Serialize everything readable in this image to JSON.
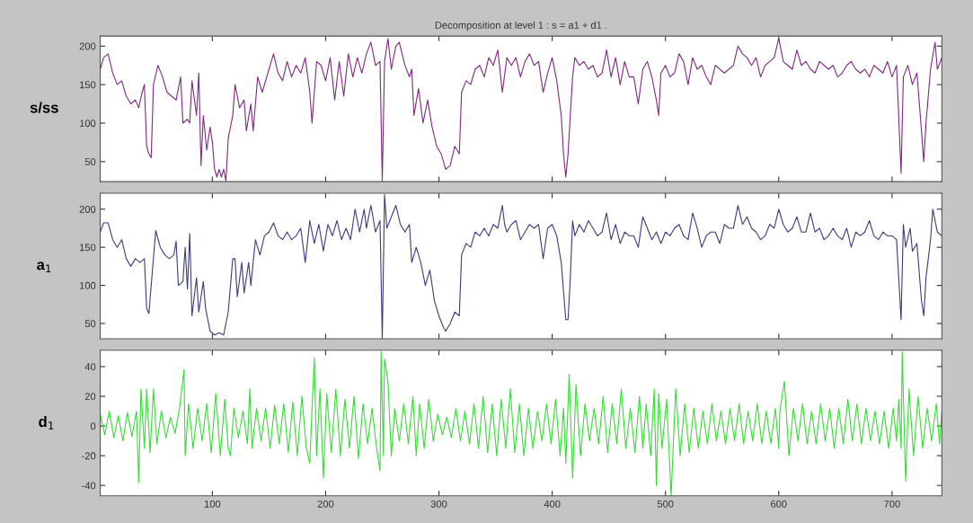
{
  "chart_data": [
    {
      "type": "line",
      "title": "Decomposition at level 1 : s = a1 + d1 .",
      "ylabel": "s/ss",
      "xlim": [
        1,
        744
      ],
      "ylim": [
        24,
        213
      ],
      "xticks": [
        100,
        200,
        300,
        400,
        500,
        600,
        700
      ],
      "yticks": [
        50,
        100,
        150,
        200
      ],
      "tick_labels": "y",
      "grid": false,
      "x": [
        1,
        4,
        8,
        12,
        16,
        20,
        24,
        28,
        32,
        35,
        38,
        40,
        42,
        44,
        46,
        48,
        52,
        56,
        60,
        64,
        68,
        72,
        74,
        78,
        80,
        82,
        86,
        88,
        90,
        92,
        95,
        98,
        100,
        102,
        104,
        106,
        108,
        110,
        112,
        114,
        118,
        120,
        124,
        128,
        130,
        134,
        136,
        140,
        144,
        148,
        150,
        154,
        158,
        162,
        166,
        170,
        174,
        178,
        182,
        186,
        188,
        192,
        196,
        200,
        204,
        208,
        212,
        216,
        220,
        224,
        228,
        232,
        236,
        240,
        244,
        248,
        250,
        252,
        255,
        258,
        262,
        265,
        270,
        274,
        276,
        278,
        282,
        286,
        290,
        294,
        298,
        302,
        306,
        310,
        314,
        318,
        320,
        324,
        328,
        332,
        336,
        340,
        344,
        348,
        352,
        356,
        360,
        364,
        368,
        372,
        376,
        380,
        384,
        388,
        392,
        396,
        400,
        404,
        408,
        410,
        412,
        414,
        416,
        418,
        420,
        424,
        428,
        432,
        436,
        440,
        444,
        448,
        452,
        456,
        460,
        464,
        468,
        472,
        476,
        480,
        484,
        488,
        492,
        494,
        496,
        500,
        504,
        508,
        512,
        516,
        520,
        524,
        528,
        532,
        536,
        540,
        544,
        548,
        552,
        556,
        560,
        564,
        568,
        572,
        576,
        580,
        584,
        588,
        592,
        596,
        600,
        604,
        608,
        612,
        616,
        620,
        624,
        628,
        632,
        636,
        640,
        644,
        648,
        652,
        656,
        660,
        664,
        668,
        672,
        676,
        680,
        684,
        688,
        692,
        696,
        700,
        704,
        708,
        710,
        714,
        718,
        722,
        726,
        728,
        730,
        734,
        738,
        740,
        744
      ],
      "series": [
        {
          "color": "#7e2a80",
          "values": [
            170,
            185,
            190,
            165,
            150,
            155,
            135,
            125,
            130,
            120,
            140,
            150,
            70,
            60,
            55,
            150,
            175,
            160,
            140,
            135,
            130,
            160,
            100,
            105,
            100,
            155,
            110,
            165,
            45,
            110,
            65,
            95,
            75,
            40,
            30,
            40,
            30,
            40,
            25,
            80,
            110,
            150,
            120,
            130,
            90,
            125,
            90,
            160,
            140,
            160,
            170,
            190,
            165,
            155,
            180,
            160,
            175,
            165,
            185,
            140,
            100,
            180,
            175,
            155,
            185,
            130,
            180,
            135,
            190,
            160,
            185,
            165,
            190,
            205,
            175,
            180,
            25,
            180,
            210,
            170,
            200,
            205,
            175,
            160,
            170,
            110,
            145,
            100,
            130,
            95,
            70,
            60,
            40,
            45,
            70,
            60,
            140,
            155,
            150,
            170,
            175,
            160,
            185,
            175,
            195,
            140,
            185,
            175,
            185,
            160,
            180,
            190,
            175,
            180,
            140,
            165,
            185,
            155,
            110,
            60,
            30,
            60,
            110,
            160,
            185,
            175,
            180,
            170,
            175,
            160,
            165,
            195,
            160,
            185,
            150,
            180,
            160,
            160,
            125,
            170,
            180,
            160,
            130,
            110,
            165,
            175,
            160,
            165,
            190,
            180,
            150,
            185,
            170,
            175,
            160,
            150,
            175,
            170,
            165,
            170,
            175,
            200,
            190,
            185,
            175,
            185,
            160,
            175,
            180,
            185,
            210,
            180,
            175,
            170,
            195,
            175,
            180,
            170,
            165,
            180,
            175,
            170,
            175,
            160,
            165,
            175,
            180,
            170,
            165,
            170,
            160,
            175,
            170,
            165,
            180,
            160,
            175,
            35,
            160,
            175,
            150,
            165,
            90,
            50,
            100,
            170,
            205,
            170,
            185
          ]
        }
      ]
    },
    {
      "type": "line",
      "ylabel": "a$_{1}$",
      "xlim": [
        1,
        744
      ],
      "ylim": [
        30,
        221
      ],
      "xticks": [
        100,
        200,
        300,
        400,
        500,
        600,
        700
      ],
      "yticks": [
        50,
        100,
        150,
        200
      ],
      "tick_labels": "y",
      "grid": false,
      "x": [
        1,
        4,
        8,
        12,
        16,
        20,
        24,
        28,
        32,
        36,
        40,
        42,
        44,
        46,
        50,
        54,
        58,
        62,
        66,
        68,
        70,
        74,
        76,
        78,
        80,
        82,
        86,
        88,
        92,
        94,
        98,
        102,
        106,
        110,
        114,
        118,
        120,
        122,
        126,
        128,
        132,
        134,
        138,
        142,
        146,
        150,
        154,
        158,
        162,
        166,
        170,
        174,
        178,
        182,
        186,
        190,
        194,
        198,
        202,
        206,
        210,
        214,
        218,
        222,
        226,
        230,
        234,
        236,
        240,
        244,
        248,
        250,
        252,
        254,
        258,
        262,
        266,
        270,
        274,
        276,
        280,
        284,
        288,
        292,
        296,
        300,
        304,
        306,
        310,
        314,
        318,
        320,
        324,
        328,
        332,
        336,
        340,
        344,
        348,
        352,
        356,
        358,
        360,
        364,
        368,
        372,
        376,
        380,
        384,
        388,
        392,
        396,
        400,
        404,
        408,
        412,
        414,
        416,
        418,
        420,
        424,
        428,
        432,
        436,
        440,
        444,
        448,
        452,
        456,
        460,
        464,
        468,
        472,
        476,
        480,
        484,
        488,
        492,
        496,
        500,
        504,
        508,
        512,
        516,
        520,
        524,
        528,
        532,
        536,
        540,
        544,
        548,
        552,
        556,
        560,
        564,
        568,
        572,
        576,
        580,
        584,
        588,
        592,
        596,
        600,
        604,
        608,
        612,
        616,
        620,
        624,
        628,
        632,
        636,
        640,
        644,
        648,
        652,
        656,
        660,
        664,
        668,
        672,
        676,
        680,
        684,
        688,
        692,
        696,
        700,
        704,
        708,
        710,
        712,
        716,
        718,
        722,
        726,
        728,
        730,
        734,
        736,
        740,
        744
      ],
      "series": [
        {
          "color": "#3c3c7c",
          "values": [
            170,
            182,
            182,
            160,
            150,
            160,
            135,
            125,
            135,
            130,
            135,
            70,
            63,
            100,
            172,
            150,
            140,
            135,
            140,
            158,
            100,
            105,
            150,
            95,
            168,
            60,
            110,
            65,
            105,
            70,
            40,
            35,
            38,
            35,
            65,
            135,
            135,
            85,
            130,
            90,
            130,
            100,
            160,
            140,
            165,
            170,
            182,
            165,
            160,
            170,
            160,
            165,
            175,
            130,
            185,
            155,
            180,
            145,
            180,
            165,
            185,
            160,
            175,
            160,
            200,
            170,
            200,
            175,
            205,
            170,
            185,
            30,
            219,
            175,
            190,
            205,
            180,
            170,
            180,
            130,
            150,
            130,
            100,
            120,
            80,
            60,
            45,
            40,
            50,
            65,
            60,
            140,
            155,
            150,
            170,
            165,
            175,
            165,
            180,
            175,
            205,
            180,
            170,
            180,
            185,
            160,
            170,
            180,
            175,
            180,
            135,
            175,
            180,
            165,
            130,
            55,
            55,
            110,
            185,
            165,
            180,
            170,
            185,
            175,
            165,
            170,
            195,
            160,
            180,
            155,
            170,
            165,
            165,
            150,
            190,
            175,
            160,
            170,
            155,
            170,
            165,
            175,
            180,
            165,
            160,
            195,
            175,
            150,
            165,
            170,
            170,
            155,
            180,
            175,
            175,
            205,
            180,
            190,
            175,
            170,
            160,
            165,
            180,
            175,
            200,
            180,
            170,
            175,
            190,
            170,
            170,
            195,
            170,
            175,
            160,
            165,
            175,
            165,
            160,
            175,
            150,
            170,
            165,
            170,
            185,
            165,
            160,
            170,
            165,
            165,
            160,
            55,
            180,
            150,
            175,
            145,
            155,
            80,
            60,
            110,
            160,
            200,
            170,
            165
          ]
        }
      ]
    },
    {
      "type": "line",
      "ylabel": "d$_{1}$",
      "xlim": [
        1,
        744
      ],
      "ylim": [
        -47,
        51
      ],
      "xticks": [
        100,
        200,
        300,
        400,
        500,
        600,
        700
      ],
      "yticks": [
        -40,
        -20,
        0,
        20,
        40
      ],
      "grid": false,
      "x": [
        1,
        5,
        9,
        13,
        17,
        21,
        25,
        29,
        33,
        35,
        37,
        40,
        42,
        45,
        48,
        51,
        55,
        59,
        63,
        67,
        71,
        75,
        76,
        79,
        83,
        87,
        91,
        95,
        99,
        103,
        107,
        111,
        114,
        116,
        119,
        123,
        127,
        131,
        133,
        135,
        139,
        143,
        147,
        151,
        155,
        159,
        163,
        167,
        171,
        175,
        179,
        183,
        186,
        188,
        190,
        192,
        195,
        198,
        201,
        205,
        209,
        213,
        217,
        221,
        225,
        229,
        233,
        237,
        241,
        245,
        248,
        249,
        251,
        252,
        255,
        258,
        261,
        265,
        269,
        273,
        277,
        280,
        283,
        287,
        291,
        295,
        299,
        303,
        307,
        311,
        315,
        319,
        323,
        327,
        331,
        335,
        339,
        343,
        347,
        351,
        355,
        359,
        363,
        367,
        371,
        375,
        379,
        383,
        387,
        391,
        395,
        399,
        403,
        407,
        410,
        412,
        415,
        418,
        421,
        425,
        429,
        433,
        437,
        441,
        445,
        449,
        453,
        457,
        461,
        465,
        469,
        473,
        477,
        480,
        483,
        487,
        490,
        492,
        494,
        497,
        501,
        505,
        509,
        513,
        517,
        521,
        525,
        529,
        533,
        537,
        541,
        545,
        549,
        553,
        557,
        561,
        565,
        569,
        573,
        577,
        581,
        585,
        589,
        593,
        597,
        600,
        601,
        605,
        609,
        613,
        617,
        621,
        625,
        629,
        633,
        637,
        641,
        645,
        649,
        653,
        657,
        661,
        665,
        669,
        673,
        677,
        681,
        685,
        689,
        693,
        697,
        701,
        704,
        706,
        708,
        709,
        712,
        715,
        719,
        723,
        727,
        731,
        735,
        739,
        742,
        744
      ],
      "series": [
        {
          "color": "#35dd35",
          "values": [
            8,
            -6,
            10,
            -8,
            7,
            -10,
            9,
            -7,
            10,
            -38,
            25,
            -15,
            25,
            -18,
            25,
            -12,
            10,
            -8,
            6,
            -5,
            12,
            38,
            -20,
            15,
            -15,
            12,
            -10,
            15,
            -18,
            22,
            -20,
            18,
            -15,
            -20,
            12,
            -8,
            10,
            -12,
            25,
            -15,
            12,
            -10,
            12,
            -15,
            14,
            -12,
            15,
            -18,
            16,
            -20,
            20,
            -15,
            -25,
            12,
            46,
            -20,
            25,
            -35,
            22,
            -18,
            25,
            -20,
            18,
            -15,
            20,
            -22,
            15,
            -12,
            12,
            -15,
            -30,
            50,
            -20,
            45,
            30,
            -20,
            12,
            -10,
            15,
            -12,
            20,
            -20,
            15,
            -15,
            18,
            -10,
            8,
            -6,
            6,
            -8,
            12,
            -10,
            10,
            -12,
            15,
            -15,
            20,
            -18,
            15,
            -20,
            18,
            -15,
            25,
            -18,
            15,
            -20,
            12,
            -15,
            10,
            -10,
            15,
            -12,
            18,
            -20,
            12,
            -25,
            35,
            -35,
            28,
            -20,
            15,
            -10,
            12,
            -12,
            20,
            -18,
            15,
            -12,
            25,
            -15,
            12,
            -18,
            20,
            -15,
            15,
            -20,
            25,
            -40,
            22,
            -15,
            18,
            -47,
            25,
            -20,
            15,
            -18,
            12,
            -15,
            10,
            -12,
            15,
            -10,
            10,
            -12,
            12,
            -10,
            15,
            -12,
            10,
            -10,
            15,
            -12,
            10,
            -12,
            12,
            -15,
            10,
            30,
            -20,
            12,
            -10,
            15,
            -12,
            10,
            -12,
            15,
            -10,
            12,
            -15,
            12,
            -12,
            18,
            -10,
            15,
            -12,
            12,
            -10,
            10,
            -12,
            10,
            -15,
            12,
            -10,
            18,
            -15,
            50,
            -37,
            25,
            -20,
            20,
            -15,
            12,
            -10,
            15,
            -12,
            10
          ]
        }
      ]
    }
  ]
}
